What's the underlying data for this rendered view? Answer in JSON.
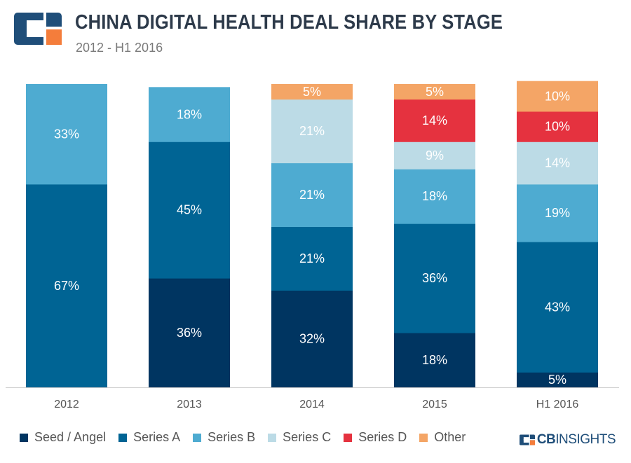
{
  "header": {
    "title": "CHINA DIGITAL HEALTH DEAL SHARE BY STAGE",
    "subtitle": "2012 - H1 2016"
  },
  "brand": {
    "logo_icon": "cb-insights-logo-icon",
    "name_bold": "CB",
    "name_light": "INSIGHTS"
  },
  "colors": {
    "seed_angel": "#003561",
    "series_a": "#006494",
    "series_b": "#4eabd1",
    "series_c": "#bcdbe6",
    "series_d": "#e5323f",
    "other": "#f4a566",
    "logo_dark": "#1f4e79",
    "logo_accent": "#f47d3b"
  },
  "chart_data": {
    "type": "bar",
    "stacked": true,
    "percent_stacked": true,
    "title": "CHINA DIGITAL HEALTH DEAL SHARE BY STAGE",
    "subtitle": "2012 - H1 2016",
    "xlabel": "",
    "ylabel": "",
    "ylim": [
      0,
      100
    ],
    "grid": false,
    "legend_position": "bottom",
    "categories": [
      "2012",
      "2013",
      "2014",
      "2015",
      "H1 2016"
    ],
    "series": [
      {
        "name": "Seed / Angel",
        "color": "#003561",
        "text_color": "#ffffff",
        "values": [
          0,
          36,
          32,
          18,
          5
        ]
      },
      {
        "name": "Series A",
        "color": "#006494",
        "text_color": "#ffffff",
        "values": [
          67,
          45,
          21,
          36,
          43
        ]
      },
      {
        "name": "Series B",
        "color": "#4eabd1",
        "text_color": "#ffffff",
        "values": [
          33,
          18,
          21,
          18,
          19
        ]
      },
      {
        "name": "Series C",
        "color": "#bcdbe6",
        "text_color": "#ffffff",
        "values": [
          0,
          0,
          21,
          9,
          14
        ]
      },
      {
        "name": "Series D",
        "color": "#e5323f",
        "text_color": "#ffffff",
        "values": [
          0,
          0,
          0,
          14,
          10
        ]
      },
      {
        "name": "Other",
        "color": "#f4a566",
        "text_color": "#ffffff",
        "values": [
          0,
          0,
          5,
          5,
          10
        ]
      }
    ],
    "data_labels": [
      [
        "",
        "36%",
        "32%",
        "18%",
        "5%"
      ],
      [
        "67%",
        "45%",
        "21%",
        "36%",
        "43%"
      ],
      [
        "33%",
        "18%",
        "21%",
        "18%",
        "19%"
      ],
      [
        "",
        "",
        "21%",
        "9%",
        "14%"
      ],
      [
        "",
        "",
        "",
        "14%",
        "10%"
      ],
      [
        "",
        "",
        "5%",
        "5%",
        "10%"
      ]
    ]
  }
}
